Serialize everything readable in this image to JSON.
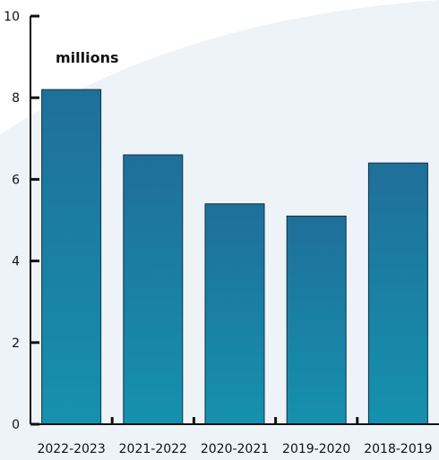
{
  "chart_data": {
    "type": "bar",
    "unit_label": "millions",
    "categories": [
      "2022-2023",
      "2021-2022",
      "2020-2021",
      "2019-2020",
      "2018-2019"
    ],
    "values": [
      8.2,
      6.6,
      5.4,
      5.1,
      6.4
    ],
    "ylim": [
      0,
      10
    ],
    "yticks": [
      "0",
      "2",
      "4",
      "6",
      "8",
      "10"
    ],
    "grid": false,
    "legend": "none"
  },
  "colors": {
    "bar_top": "#1f6f99",
    "bar_bottom": "#1591ae",
    "bar_stroke": "#0c3346",
    "axis": "#111111",
    "background_shape": "#eef3f8"
  }
}
